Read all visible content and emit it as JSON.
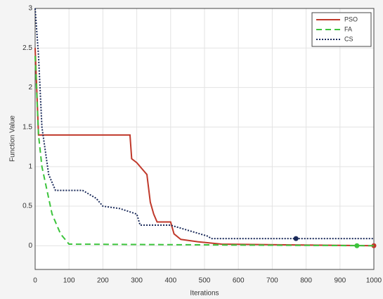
{
  "chart_data": {
    "type": "line",
    "xlabel": "Iterations",
    "ylabel": "Function Value",
    "xlim": [
      0,
      1000
    ],
    "xticks": [
      0,
      100,
      200,
      300,
      400,
      500,
      600,
      700,
      800,
      900,
      1000
    ],
    "ylim": [
      -0.3,
      3
    ],
    "yticks": [
      0,
      0.5,
      1,
      1.5,
      2,
      2.5,
      3
    ],
    "grid": true,
    "legend": "upper-right",
    "series": [
      {
        "name": "PSO",
        "color": "#c0392b",
        "dash": "solid",
        "x": [
          0,
          10,
          280,
          285,
          300,
          320,
          330,
          340,
          350,
          360,
          400,
          410,
          430,
          480,
          550,
          1000
        ],
        "values": [
          2.5,
          1.4,
          1.4,
          1.1,
          1.05,
          0.95,
          0.9,
          0.55,
          0.4,
          0.3,
          0.3,
          0.15,
          0.08,
          0.05,
          0.02,
          0
        ],
        "marker": [
          1000,
          0
        ]
      },
      {
        "name": "FA",
        "color": "#3cc43c",
        "dash": "dashed",
        "x": [
          0,
          10,
          20,
          30,
          50,
          75,
          100,
          1000
        ],
        "values": [
          2.4,
          1.4,
          1.0,
          0.8,
          0.4,
          0.15,
          0.02,
          0
        ],
        "marker": [
          950,
          0
        ]
      },
      {
        "name": "CS",
        "color": "#1a2a5a",
        "dash": "dotted",
        "x": [
          0,
          10,
          20,
          30,
          40,
          60,
          140,
          180,
          200,
          250,
          300,
          310,
          400,
          510,
          520,
          1000
        ],
        "values": [
          3,
          2.4,
          1.5,
          1.2,
          0.9,
          0.7,
          0.7,
          0.6,
          0.5,
          0.47,
          0.4,
          0.26,
          0.26,
          0.12,
          0.09,
          0.09
        ],
        "marker": [
          770,
          0.09
        ]
      }
    ]
  }
}
